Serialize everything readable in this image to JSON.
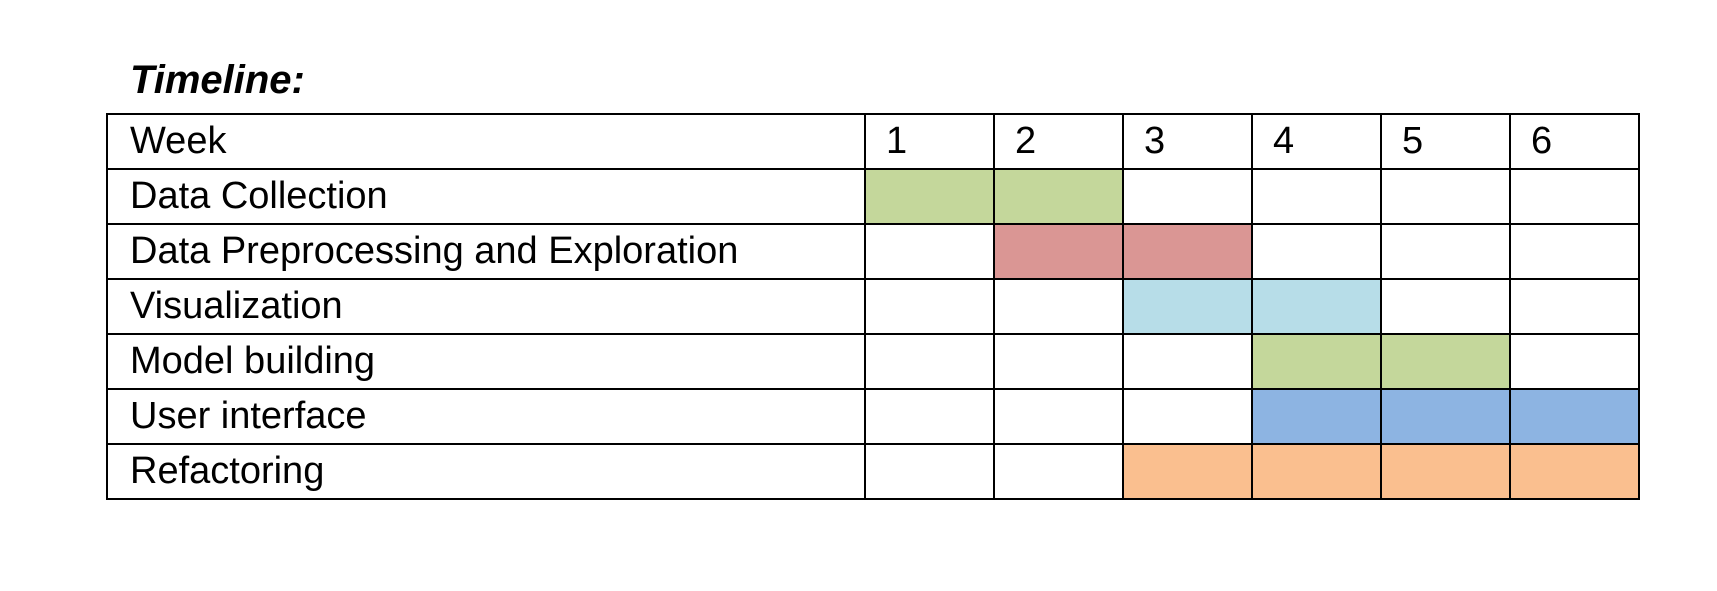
{
  "title": "Timeline:",
  "header": {
    "label": "Week",
    "weeks": [
      "1",
      "2",
      "3",
      "4",
      "5",
      "6"
    ]
  },
  "tasks": [
    {
      "name": "Data Collection",
      "start_week": 1,
      "end_week": 2,
      "color": "#c4d79b"
    },
    {
      "name": "Data Preprocessing and Exploration",
      "start_week": 2,
      "end_week": 3,
      "color": "#da9694"
    },
    {
      "name": "Visualization",
      "start_week": 3,
      "end_week": 4,
      "color": "#b7dde8"
    },
    {
      "name": "Model building",
      "start_week": 4,
      "end_week": 5,
      "color": "#c4d79b"
    },
    {
      "name": "User interface",
      "start_week": 4,
      "end_week": 6,
      "color": "#8db4e2"
    },
    {
      "name": "Refactoring",
      "start_week": 3,
      "end_week": 6,
      "color": "#fabf8f"
    }
  ]
}
